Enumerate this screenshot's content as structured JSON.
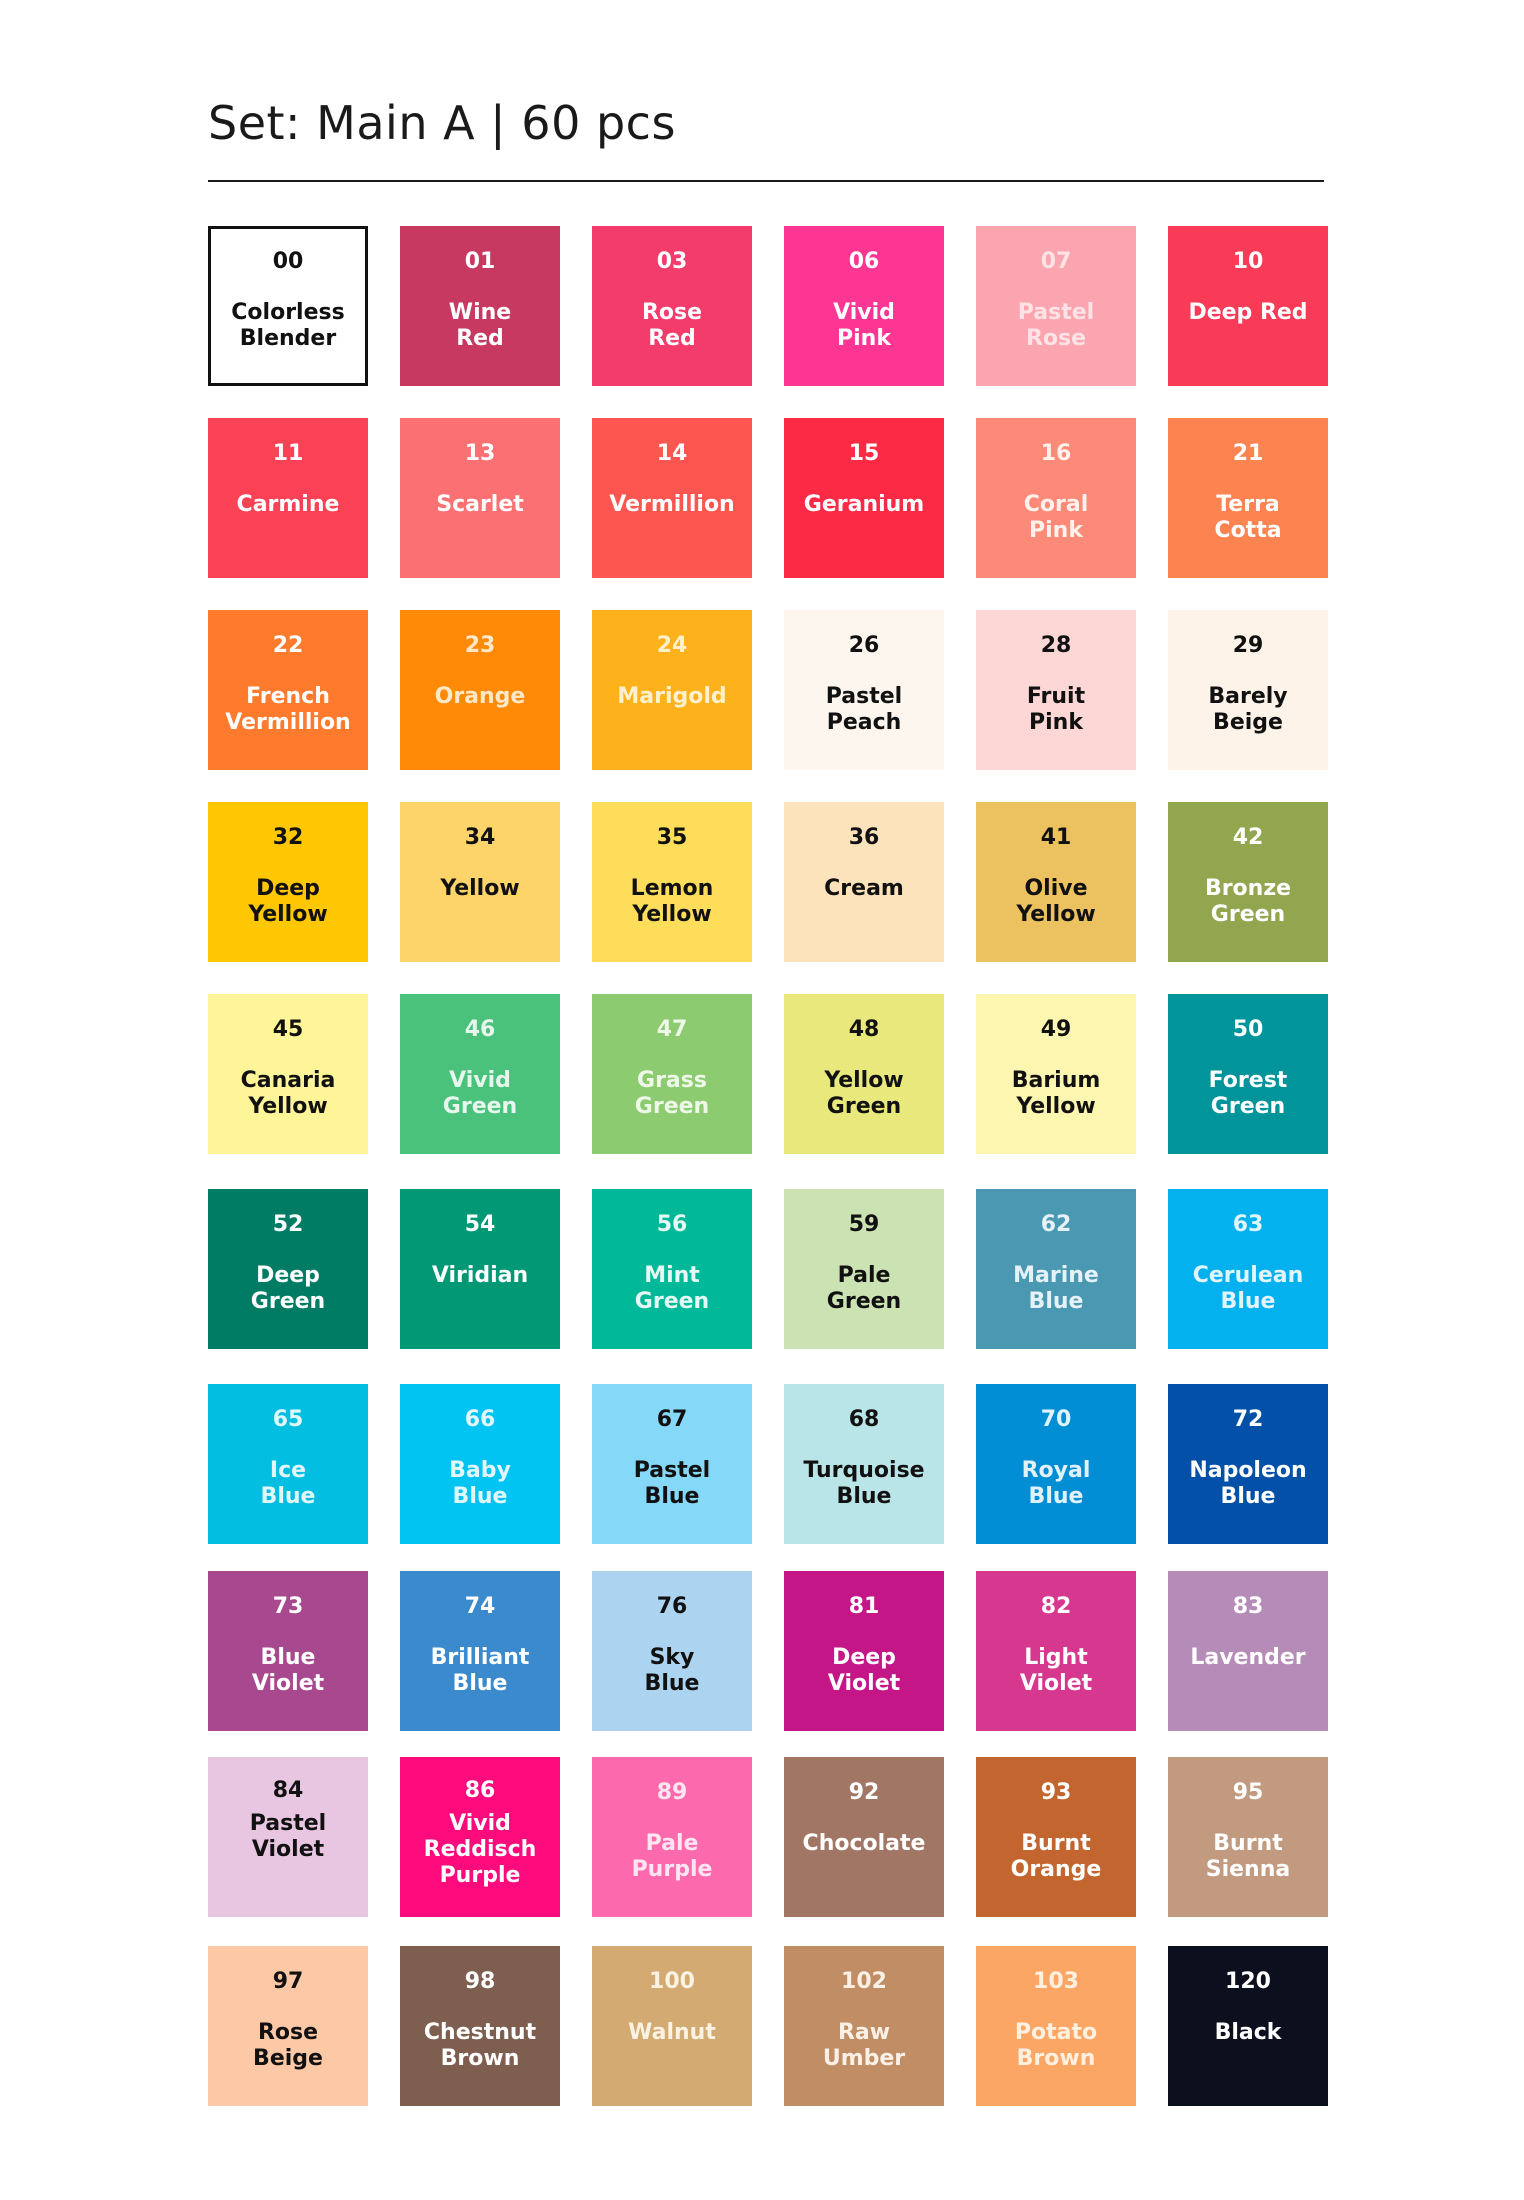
{
  "title": "Set: Main A | 60 pcs",
  "swatches": [
    {
      "code": "00",
      "name": "Colorless\nBlender",
      "color": "#ffffff",
      "text": "#111111",
      "outlined": true
    },
    {
      "code": "01",
      "name": "Wine\nRed",
      "color": "#c73960",
      "text": "#ffffff"
    },
    {
      "code": "03",
      "name": "Rose\nRed",
      "color": "#f33b6c",
      "text": "#ffffff"
    },
    {
      "code": "06",
      "name": "Vivid\nPink",
      "color": "#fd3593",
      "text": "#ffffff"
    },
    {
      "code": "07",
      "name": "Pastel\nRose",
      "color": "#fba5b0",
      "text": "#fde3e6"
    },
    {
      "code": "10",
      "name": "Deep Red",
      "color": "#fa3b57",
      "text": "#ffffff"
    },
    {
      "code": "11",
      "name": "Carmine",
      "color": "#fa4155",
      "text": "#ffffff"
    },
    {
      "code": "13",
      "name": "Scarlet",
      "color": "#fb7173",
      "text": "#ffffff"
    },
    {
      "code": "14",
      "name": "Vermillion",
      "color": "#fd5650",
      "text": "#ffffff"
    },
    {
      "code": "15",
      "name": "Geranium",
      "color": "#fd2a45",
      "text": "#ffffff"
    },
    {
      "code": "16",
      "name": "Coral\nPink",
      "color": "#fd8a79",
      "text": "#fff1ec"
    },
    {
      "code": "21",
      "name": "Terra\nCotta",
      "color": "#fd8350",
      "text": "#ffffff"
    },
    {
      "code": "22",
      "name": "French\nVermillion",
      "color": "#fe7b2e",
      "text": "#ffffff"
    },
    {
      "code": "23",
      "name": "Orange",
      "color": "#fe8a08",
      "text": "#ffe8c8"
    },
    {
      "code": "24",
      "name": "Marigold",
      "color": "#fdb21c",
      "text": "#fff1cc"
    },
    {
      "code": "26",
      "name": "Pastel\nPeach",
      "color": "#fdf6ef",
      "text": "#111111"
    },
    {
      "code": "28",
      "name": "Fruit\nPink",
      "color": "#fdd6d6",
      "text": "#111111"
    },
    {
      "code": "29",
      "name": "Barely\nBeige",
      "color": "#fdf3e8",
      "text": "#111111"
    },
    {
      "code": "32",
      "name": "Deep\nYellow",
      "color": "#fec702",
      "text": "#111111"
    },
    {
      "code": "34",
      "name": "Yellow",
      "color": "#fdd469",
      "text": "#111111"
    },
    {
      "code": "35",
      "name": "Lemon\nYellow",
      "color": "#fedd5b",
      "text": "#111111"
    },
    {
      "code": "36",
      "name": "Cream",
      "color": "#fde3bb",
      "text": "#111111"
    },
    {
      "code": "41",
      "name": "Olive\nYellow",
      "color": "#ecc15f",
      "text": "#111111"
    },
    {
      "code": "42",
      "name": "Bronze\nGreen",
      "color": "#92a650",
      "text": "#ffffff"
    },
    {
      "code": "45",
      "name": "Canaria\nYellow",
      "color": "#fdf597",
      "text": "#111111"
    },
    {
      "code": "46",
      "name": "Vivid\nGreen",
      "color": "#4bc27c",
      "text": "#e8f7ee"
    },
    {
      "code": "47",
      "name": "Grass\nGreen",
      "color": "#8ccb6f",
      "text": "#eef8e8"
    },
    {
      "code": "48",
      "name": "Yellow\nGreen",
      "color": "#e9e87d",
      "text": "#111111"
    },
    {
      "code": "49",
      "name": "Barium\nYellow",
      "color": "#fdf6b0",
      "text": "#111111"
    },
    {
      "code": "50",
      "name": "Forest\nGreen",
      "color": "#01959b",
      "text": "#ffffff"
    },
    {
      "code": "52",
      "name": "Deep\nGreen",
      "color": "#007c65",
      "text": "#ffffff"
    },
    {
      "code": "54",
      "name": "Viridian",
      "color": "#019876",
      "text": "#ffffff"
    },
    {
      "code": "56",
      "name": "Mint\nGreen",
      "color": "#01b999",
      "text": "#e6f8f3"
    },
    {
      "code": "59",
      "name": "Pale\nGreen",
      "color": "#cbe2b3",
      "text": "#111111"
    },
    {
      "code": "62",
      "name": "Marine\nBlue",
      "color": "#4b98b3",
      "text": "#e6f2f7"
    },
    {
      "code": "63",
      "name": "Cerulean\nBlue",
      "color": "#02b1ee",
      "text": "#e2f5fd"
    },
    {
      "code": "65",
      "name": "Ice\nBlue",
      "color": "#02bfe1",
      "text": "#e2f7fb"
    },
    {
      "code": "66",
      "name": "Baby\nBlue",
      "color": "#02c4f2",
      "text": "#e2f7fd"
    },
    {
      "code": "67",
      "name": "Pastel\nBlue",
      "color": "#86d8f8",
      "text": "#111111"
    },
    {
      "code": "68",
      "name": "Turquoise\nBlue",
      "color": "#b9e5e8",
      "text": "#111111"
    },
    {
      "code": "70",
      "name": "Royal\nBlue",
      "color": "#028ed5",
      "text": "#e2f2fb"
    },
    {
      "code": "72",
      "name": "Napoleon\nBlue",
      "color": "#0250a8",
      "text": "#ffffff"
    },
    {
      "code": "73",
      "name": "Blue\nViolet",
      "color": "#a8498f",
      "text": "#ffffff"
    },
    {
      "code": "74",
      "name": "Brilliant\nBlue",
      "color": "#3a8acd",
      "text": "#ffffff"
    },
    {
      "code": "76",
      "name": "Sky\nBlue",
      "color": "#acd4f0",
      "text": "#111111"
    },
    {
      "code": "81",
      "name": "Deep\nViolet",
      "color": "#c41687",
      "text": "#ffffff"
    },
    {
      "code": "82",
      "name": "Light\nViolet",
      "color": "#d6378f",
      "text": "#ffffff"
    },
    {
      "code": "83",
      "name": "Lavender",
      "color": "#b58cb7",
      "text": "#ffffff"
    },
    {
      "code": "84",
      "name": "Pastel\nViolet",
      "color": "#e8c5e1",
      "text": "#111111",
      "tight": true
    },
    {
      "code": "86",
      "name": "Vivid\nReddisch\nPurple",
      "color": "#fd0b7d",
      "text": "#ffffff",
      "tight": true
    },
    {
      "code": "89",
      "name": "Pale\nPurple",
      "color": "#fd69ad",
      "text": "#fde6f1"
    },
    {
      "code": "92",
      "name": "Chocolate",
      "color": "#a17665",
      "text": "#ffffff"
    },
    {
      "code": "93",
      "name": "Burnt\nOrange",
      "color": "#c3652f",
      "text": "#ffffff"
    },
    {
      "code": "95",
      "name": "Burnt\nSienna",
      "color": "#c19a7f",
      "text": "#ffffff"
    },
    {
      "code": "97",
      "name": "Rose\nBeige",
      "color": "#fdc8a5",
      "text": "#111111"
    },
    {
      "code": "98",
      "name": "Chestnut\nBrown",
      "color": "#7e5e4f",
      "text": "#ffffff"
    },
    {
      "code": "100",
      "name": "Walnut",
      "color": "#d2aa72",
      "text": "#fbf2e3"
    },
    {
      "code": "102",
      "name": "Raw\nUmber",
      "color": "#c08d64",
      "text": "#fbf0e6"
    },
    {
      "code": "103",
      "name": "Potato\nBrown",
      "color": "#fca665",
      "text": "#fff0e0"
    },
    {
      "code": "120",
      "name": "Black",
      "color": "#0c101e",
      "text": "#ffffff"
    }
  ]
}
